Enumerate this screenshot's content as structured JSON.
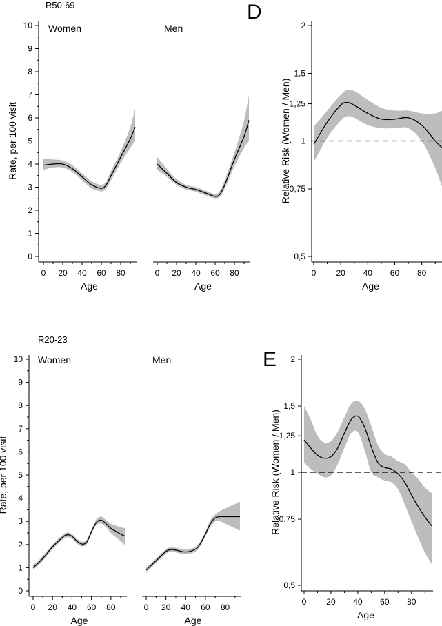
{
  "chart_data": [
    {
      "id": "r50-women",
      "type": "area",
      "title": "R50-69",
      "panel_label": "Women",
      "xlabel": "Age",
      "ylabel": "Rate, per 100 visit",
      "xlim": [
        0,
        95
      ],
      "ylim": [
        0,
        10
      ],
      "xticks": [
        "0",
        "20",
        "40",
        "60",
        "80"
      ],
      "yticks": [
        "0",
        "1",
        "2",
        "3",
        "4",
        "5",
        "6",
        "7",
        "8",
        "9",
        "10"
      ],
      "x": [
        0,
        10,
        20,
        30,
        40,
        50,
        60,
        65,
        70,
        80,
        90,
        95
      ],
      "y": [
        3.95,
        4.0,
        4.0,
        3.8,
        3.45,
        3.1,
        2.95,
        3.1,
        3.5,
        4.3,
        5.1,
        5.6
      ],
      "lower": [
        3.75,
        3.85,
        3.85,
        3.65,
        3.3,
        2.95,
        2.82,
        2.95,
        3.3,
        4.05,
        4.7,
        5.0
      ],
      "upper": [
        4.25,
        4.2,
        4.15,
        3.95,
        3.6,
        3.25,
        3.1,
        3.25,
        3.7,
        4.55,
        5.6,
        6.4
      ]
    },
    {
      "id": "r50-men",
      "type": "area",
      "panel_label": "Men",
      "xlabel": "Age",
      "xlim": [
        0,
        95
      ],
      "ylim": [
        0,
        10
      ],
      "xticks": [
        "0",
        "20",
        "40",
        "60",
        "80"
      ],
      "x": [
        0,
        10,
        20,
        30,
        40,
        50,
        60,
        65,
        70,
        80,
        90,
        95
      ],
      "y": [
        4.0,
        3.6,
        3.2,
        3.0,
        2.9,
        2.75,
        2.6,
        2.7,
        3.1,
        4.2,
        5.2,
        5.9
      ],
      "lower": [
        3.75,
        3.45,
        3.1,
        2.9,
        2.8,
        2.65,
        2.52,
        2.6,
        2.95,
        3.9,
        4.7,
        5.0
      ],
      "upper": [
        4.3,
        3.8,
        3.35,
        3.1,
        3.0,
        2.85,
        2.7,
        2.85,
        3.3,
        4.5,
        5.9,
        7.0
      ]
    },
    {
      "id": "panel-d",
      "type": "area",
      "letter": "D",
      "xlabel": "Age",
      "ylabel": "Relative Risk (Women / Men)",
      "xlim": [
        0,
        95
      ],
      "ylim": [
        0.5,
        2
      ],
      "scale": "log",
      "xticks": [
        "0",
        "20",
        "40",
        "60",
        "80"
      ],
      "yticks": [
        {
          "value": 0.5,
          "label": "0,5"
        },
        {
          "value": 0.75,
          "label": "0,75"
        },
        {
          "value": 1,
          "label": "1"
        },
        {
          "value": 1.25,
          "label": "1,25"
        },
        {
          "value": 1.5,
          "label": "1,5"
        },
        {
          "value": 2,
          "label": "2"
        }
      ],
      "reference": 1,
      "x": [
        0,
        10,
        20,
        25,
        30,
        40,
        50,
        60,
        70,
        80,
        90,
        95
      ],
      "y": [
        0.98,
        1.12,
        1.24,
        1.26,
        1.24,
        1.18,
        1.14,
        1.14,
        1.15,
        1.1,
        1.0,
        0.96
      ],
      "lower": [
        0.88,
        1.02,
        1.13,
        1.16,
        1.15,
        1.1,
        1.08,
        1.08,
        1.08,
        1.0,
        0.85,
        0.76
      ],
      "upper": [
        1.09,
        1.2,
        1.32,
        1.36,
        1.35,
        1.28,
        1.22,
        1.2,
        1.2,
        1.18,
        1.18,
        1.2
      ]
    },
    {
      "id": "r20-women",
      "type": "area",
      "title": "R20-23",
      "panel_label": "Women",
      "xlabel": "Age",
      "ylabel": "Rate, per 100 visit",
      "xlim": [
        0,
        95
      ],
      "ylim": [
        0,
        10
      ],
      "xticks": [
        "0",
        "20",
        "40",
        "60",
        "80"
      ],
      "yticks": [
        "0",
        "1",
        "2",
        "3",
        "4",
        "5",
        "6",
        "7",
        "8",
        "9",
        "10"
      ],
      "x": [
        0,
        10,
        20,
        30,
        35,
        40,
        45,
        50,
        55,
        60,
        65,
        70,
        75,
        80,
        90,
        95
      ],
      "y": [
        1.0,
        1.4,
        1.9,
        2.3,
        2.42,
        2.35,
        2.15,
        2.02,
        2.1,
        2.55,
        2.95,
        3.05,
        2.9,
        2.7,
        2.45,
        2.35
      ],
      "lower": [
        0.9,
        1.3,
        1.8,
        2.2,
        2.32,
        2.25,
        2.05,
        1.92,
        2.0,
        2.45,
        2.83,
        2.9,
        2.75,
        2.5,
        2.15,
        1.95
      ],
      "upper": [
        1.1,
        1.5,
        2.0,
        2.4,
        2.52,
        2.45,
        2.25,
        2.12,
        2.2,
        2.65,
        3.08,
        3.2,
        3.05,
        2.9,
        2.75,
        2.7
      ]
    },
    {
      "id": "r20-men",
      "type": "area",
      "panel_label": "Men",
      "xlabel": "Age",
      "xlim": [
        0,
        95
      ],
      "ylim": [
        0,
        10
      ],
      "xticks": [
        "0",
        "20",
        "40",
        "60",
        "80"
      ],
      "x": [
        0,
        10,
        20,
        25,
        30,
        40,
        50,
        55,
        60,
        65,
        70,
        75,
        80,
        90,
        95
      ],
      "y": [
        0.9,
        1.3,
        1.7,
        1.78,
        1.76,
        1.68,
        1.8,
        2.05,
        2.45,
        2.9,
        3.15,
        3.2,
        3.2,
        3.2,
        3.2
      ],
      "lower": [
        0.8,
        1.2,
        1.6,
        1.68,
        1.66,
        1.58,
        1.7,
        1.95,
        2.35,
        2.75,
        3.0,
        3.0,
        2.9,
        2.7,
        2.6
      ],
      "upper": [
        1.0,
        1.4,
        1.8,
        1.88,
        1.86,
        1.78,
        1.9,
        2.15,
        2.55,
        3.05,
        3.3,
        3.45,
        3.55,
        3.75,
        3.85
      ]
    },
    {
      "id": "panel-e",
      "type": "area",
      "letter": "E",
      "xlabel": "Age",
      "ylabel": "Relative Risk (Women / Men)",
      "xlim": [
        0,
        95
      ],
      "ylim": [
        0.5,
        2
      ],
      "scale": "log",
      "xticks": [
        "0",
        "20",
        "40",
        "60",
        "80"
      ],
      "yticks": [
        {
          "value": 0.5,
          "label": "0,5"
        },
        {
          "value": 0.75,
          "label": "0,75"
        },
        {
          "value": 1,
          "label": "1"
        },
        {
          "value": 1.25,
          "label": "1,25"
        },
        {
          "value": 1.5,
          "label": "1,5"
        },
        {
          "value": 2,
          "label": "2"
        }
      ],
      "reference": 1,
      "x": [
        0,
        5,
        10,
        15,
        20,
        25,
        30,
        35,
        40,
        45,
        50,
        55,
        60,
        65,
        70,
        75,
        80,
        85,
        90,
        95
      ],
      "y": [
        1.22,
        1.16,
        1.11,
        1.09,
        1.1,
        1.16,
        1.27,
        1.38,
        1.41,
        1.32,
        1.17,
        1.06,
        1.03,
        1.02,
        0.99,
        0.94,
        0.87,
        0.81,
        0.76,
        0.72
      ],
      "lower": [
        1.06,
        1.02,
        0.99,
        0.97,
        0.98,
        1.05,
        1.16,
        1.27,
        1.28,
        1.15,
        1.0,
        0.97,
        0.95,
        0.94,
        0.9,
        0.82,
        0.74,
        0.67,
        0.61,
        0.57
      ],
      "upper": [
        1.5,
        1.38,
        1.25,
        1.2,
        1.21,
        1.28,
        1.4,
        1.52,
        1.55,
        1.48,
        1.33,
        1.18,
        1.12,
        1.1,
        1.07,
        1.05,
        1.0,
        0.96,
        0.91,
        0.88
      ]
    }
  ]
}
